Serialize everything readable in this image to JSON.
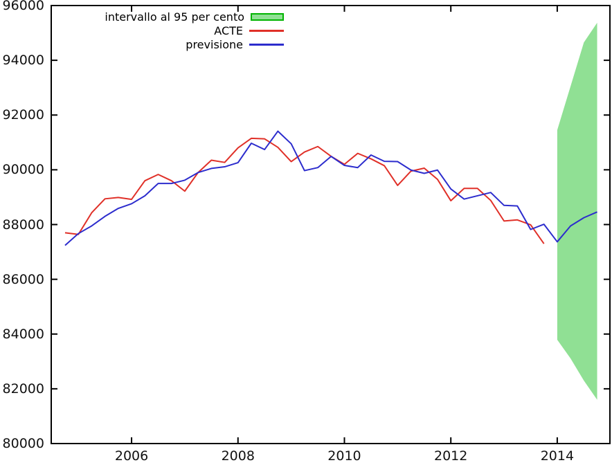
{
  "legend": {
    "items": [
      {
        "label": "intervallo al 95 per cento",
        "swatch": "area"
      },
      {
        "label": "ACTE",
        "swatch": "line"
      },
      {
        "label": "previsione",
        "swatch": "line"
      }
    ]
  },
  "chart_data": {
    "type": "line",
    "title": "",
    "xlabel": "",
    "ylabel": "",
    "grid": "off",
    "legend_position": "top-inside",
    "frame": "full-box-with-inward-ticks",
    "x_range": [
      2004.49,
      2014.99
    ],
    "y_range": [
      80000,
      96000
    ],
    "x_tick_years": [
      2006,
      2008,
      2010,
      2012,
      2014
    ],
    "x_tick_labels": [
      "2006",
      "2008",
      "2010",
      "2012",
      "2014"
    ],
    "y_tick_values": [
      80000,
      82000,
      84000,
      86000,
      88000,
      90000,
      92000,
      94000,
      96000
    ],
    "y_tick_labels": [
      "80000",
      "82000",
      "84000",
      "86000",
      "88000",
      "90000",
      "92000",
      "94000",
      "96000"
    ],
    "frequency": "quarterly",
    "colors": {
      "acte": "#e03028",
      "previsione": "#2c2ccd",
      "band_fill": "#90e094",
      "band_border": "#00b400",
      "axis": "#000000"
    },
    "series": [
      {
        "name": "ACTE",
        "color": "#e03028",
        "start": 2004.75,
        "step": 0.25,
        "values": [
          87700,
          87640,
          88430,
          88940,
          88990,
          88920,
          89600,
          89830,
          89600,
          89220,
          89900,
          90350,
          90270,
          90800,
          91150,
          91130,
          90820,
          90300,
          90650,
          90850,
          90490,
          90200,
          90600,
          90400,
          90150,
          89430,
          89950,
          90060,
          89650,
          88870,
          89320,
          89320,
          88880,
          88130,
          88170,
          87990,
          87300
        ]
      },
      {
        "name": "previsione",
        "color": "#2c2ccd",
        "start": 2004.75,
        "step": 0.25,
        "values": [
          87240,
          87670,
          87950,
          88300,
          88590,
          88760,
          89050,
          89500,
          89500,
          89620,
          89900,
          90050,
          90110,
          90260,
          90970,
          90740,
          91410,
          90950,
          89970,
          90080,
          90490,
          90160,
          90080,
          90540,
          90310,
          90300,
          89990,
          89870,
          89990,
          89300,
          88930,
          89050,
          89170,
          88700,
          88680,
          87820,
          88010,
          87370,
          87950,
          88250,
          88460
        ]
      }
    ],
    "interval": {
      "name": "intervallo al 95 per cento",
      "fill": "#90e094",
      "border": "#00b400",
      "x": [
        2014.0,
        2014.25,
        2014.5,
        2014.75
      ],
      "hi": [
        91450,
        93050,
        94650,
        95370
      ],
      "lo": [
        83790,
        83110,
        82300,
        81600
      ]
    }
  }
}
